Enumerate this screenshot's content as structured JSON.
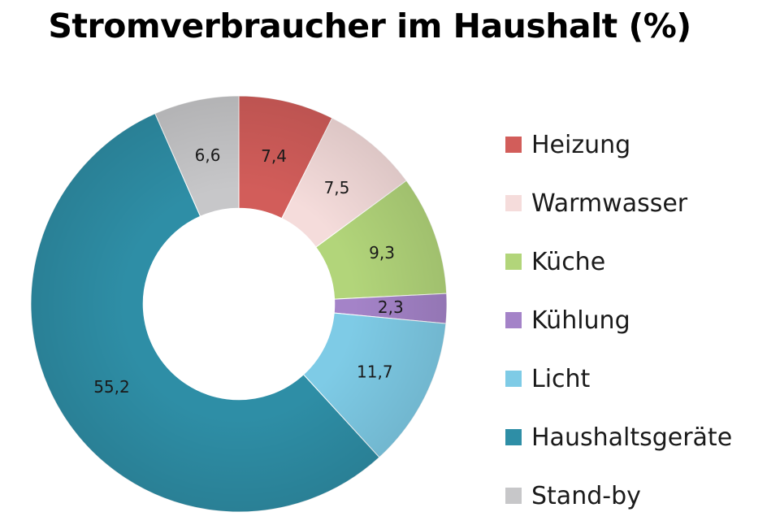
{
  "chart_data": {
    "type": "pie",
    "title": "Stromverbraucher im Haushalt (%)",
    "legend_position": "right",
    "inner_radius_ratio": 0.46,
    "start_angle_deg": 0,
    "direction": "clockwise",
    "slices": [
      {
        "label": "Heizung",
        "value": 7.4,
        "display": "7,4",
        "color": "#d25d5a"
      },
      {
        "label": "Warmwasser",
        "value": 7.5,
        "display": "7,5",
        "color": "#f5dcdb"
      },
      {
        "label": "Küche",
        "value": 9.3,
        "display": "9,3",
        "color": "#b2d57a"
      },
      {
        "label": "Kühlung",
        "value": 2.3,
        "display": "2,3",
        "color": "#a483c8"
      },
      {
        "label": "Licht",
        "value": 11.7,
        "display": "11,7",
        "color": "#7ecbe6"
      },
      {
        "label": "Haushaltsgeräte",
        "value": 55.2,
        "display": "55,2",
        "color": "#2e8ea6"
      },
      {
        "label": "Stand-by",
        "value": 6.6,
        "display": "6,6",
        "color": "#c7c7c9"
      }
    ]
  }
}
